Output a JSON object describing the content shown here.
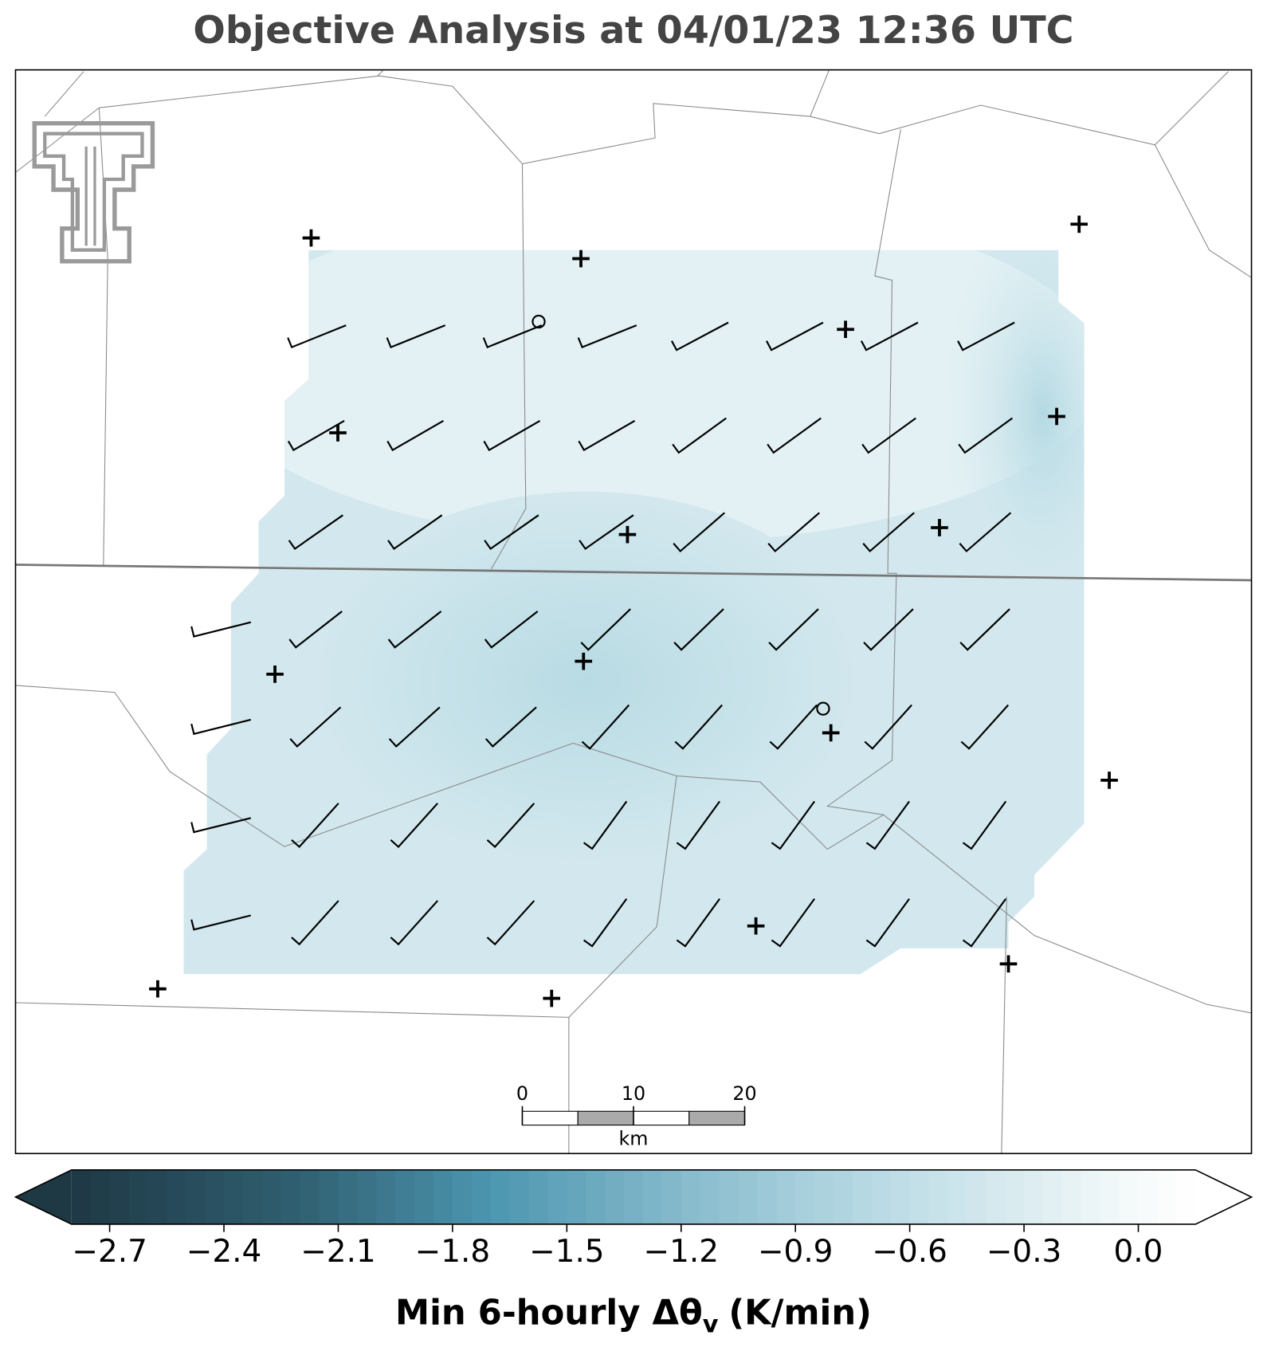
{
  "title": "Objective Analysis at 04/01/23 12:36 UTC",
  "scale_bar": {
    "ticks": [
      0,
      10,
      20
    ],
    "unit": "km"
  },
  "colorbar": {
    "limits": [
      -2.8,
      0.15
    ],
    "ticks": [
      {
        "value": -2.7,
        "label": "−2.7"
      },
      {
        "value": -2.4,
        "label": "−2.4"
      },
      {
        "value": -2.1,
        "label": "−2.1"
      },
      {
        "value": -1.8,
        "label": "−1.8"
      },
      {
        "value": -1.5,
        "label": "−1.5"
      },
      {
        "value": -1.2,
        "label": "−1.2"
      },
      {
        "value": -0.9,
        "label": "−0.9"
      },
      {
        "value": -0.6,
        "label": "−0.6"
      },
      {
        "value": -0.3,
        "label": "−0.3"
      },
      {
        "value": 0,
        "label": "0.0"
      }
    ],
    "label": "Min 6-hourly Δθ",
    "label_sub": "v",
    "label_unit": "(K/min)"
  }
}
